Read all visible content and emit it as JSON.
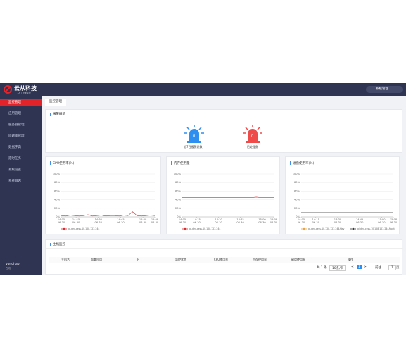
{
  "header": {
    "logo": "云从科技",
    "slogan": "· 人工智能专家 ·",
    "button": "系统管理"
  },
  "menu": [
    "监控管理",
    "应用管理",
    "服务器管理",
    "问题库管理",
    "数据字典",
    "定时任务",
    "系统设置",
    "系统日志"
  ],
  "user": {
    "name": "yonghao",
    "status": "在线"
  },
  "tab": "监控管理",
  "alarm_panel": {
    "title": "报警概览",
    "items": [
      {
        "count": "0",
        "label": "近7日报警总数"
      },
      {
        "count": "0",
        "label": "已处理数"
      }
    ]
  },
  "charts": [
    {
      "type": "line",
      "title": "CPU使用率(%)",
      "xlim": [
        0,
        63
      ],
      "ylim": [
        0,
        100
      ],
      "yticks": [
        {
          "value": 0,
          "label": "0%"
        },
        {
          "value": 20,
          "label": "20%"
        },
        {
          "value": 40,
          "label": "40%"
        },
        {
          "value": 60,
          "label": "60%"
        },
        {
          "value": 80,
          "label": "80%"
        },
        {
          "value": 100,
          "label": "100%"
        }
      ],
      "xticks": [
        {
          "value": 0,
          "label": "14:05",
          "sublabel": "06-30"
        },
        {
          "value": 10,
          "label": "14:15",
          "sublabel": "06-30"
        },
        {
          "value": 25,
          "label": "14:30",
          "sublabel": "06-30"
        },
        {
          "value": 40,
          "label": "14:45",
          "sublabel": "06-30"
        },
        {
          "value": 55,
          "label": "15:00",
          "sublabel": "06-30"
        },
        {
          "value": 63,
          "label": "15:08",
          "sublabel": "06-30"
        }
      ],
      "x": [
        0,
        3,
        6,
        9,
        12,
        15,
        18,
        21,
        24,
        27,
        30,
        33,
        36,
        39,
        42,
        45,
        48,
        51,
        54,
        57,
        60,
        63
      ],
      "series": [
        {
          "name": "ai-dev-cess-10.128.122.244",
          "color": "#d9262c",
          "values": [
            3,
            2,
            4,
            3,
            2,
            3,
            5,
            2,
            3,
            4,
            2,
            3,
            3,
            2,
            4,
            3,
            12,
            3,
            2,
            3,
            4,
            3
          ]
        }
      ]
    },
    {
      "type": "line",
      "title": "内存使用量",
      "xlim": [
        0,
        63
      ],
      "ylim": [
        0,
        100
      ],
      "yticks": [
        {
          "value": 0,
          "label": "0%"
        },
        {
          "value": 20,
          "label": "20%"
        },
        {
          "value": 40,
          "label": "40%"
        },
        {
          "value": 60,
          "label": "60%"
        },
        {
          "value": 80,
          "label": "80%"
        },
        {
          "value": 100,
          "label": "100%"
        }
      ],
      "xticks": [
        {
          "value": 0,
          "label": "14:05",
          "sublabel": "06-30"
        },
        {
          "value": 10,
          "label": "14:15",
          "sublabel": "06-30"
        },
        {
          "value": 25,
          "label": "14:30",
          "sublabel": "06-30"
        },
        {
          "value": 40,
          "label": "14:45",
          "sublabel": "06-30"
        },
        {
          "value": 55,
          "label": "15:00",
          "sublabel": "06-30"
        },
        {
          "value": 63,
          "label": "15:08",
          "sublabel": "06-30"
        }
      ],
      "x": [
        0,
        3,
        6,
        9,
        12,
        15,
        18,
        21,
        24,
        27,
        30,
        33,
        36,
        39,
        42,
        45,
        48,
        51,
        54,
        57,
        60,
        63
      ],
      "series": [
        {
          "name": "ai-dev-cess-10.128.122.244",
          "color": "#d9262c",
          "values": [
            45,
            45,
            45,
            45,
            45,
            45,
            45,
            45,
            45,
            45,
            45,
            45,
            45,
            45,
            45,
            45,
            45,
            46,
            45,
            45,
            45,
            45
          ]
        }
      ]
    },
    {
      "type": "line",
      "title": "磁盘使用率(%)",
      "xlim": [
        0,
        63
      ],
      "ylim": [
        0,
        100
      ],
      "yticks": [
        {
          "value": 0,
          "label": "0%"
        },
        {
          "value": 20,
          "label": "20%"
        },
        {
          "value": 40,
          "label": "40%"
        },
        {
          "value": 60,
          "label": "60%"
        },
        {
          "value": 80,
          "label": "80%"
        },
        {
          "value": 100,
          "label": "100%"
        }
      ],
      "xticks": [
        {
          "value": 0,
          "label": "14:05",
          "sublabel": "06-30"
        },
        {
          "value": 10,
          "label": "14:15",
          "sublabel": "06-30"
        },
        {
          "value": 25,
          "label": "14:30",
          "sublabel": "06-30"
        },
        {
          "value": 40,
          "label": "14:45",
          "sublabel": "06-30"
        },
        {
          "value": 55,
          "label": "15:00",
          "sublabel": "06-30"
        },
        {
          "value": 63,
          "label": "15:08",
          "sublabel": "06-30"
        }
      ],
      "x": [
        0,
        63
      ],
      "series": [
        {
          "name": "ai-dev-cess-10.128.122.244/dev",
          "color": "#e8a33b",
          "values": [
            65,
            65
          ]
        },
        {
          "name": "ai-dev-cess-10.128.122.244/boot",
          "color": "#333333",
          "values": [
            10,
            10
          ]
        }
      ]
    }
  ],
  "host_panel": {
    "title": "主机监控",
    "columns": [
      "主机名",
      "部署应用",
      "IP",
      "监控状态",
      "CPU使用率",
      "内存使用率",
      "磁盘使用率",
      "操作"
    ]
  },
  "pagination": {
    "total": "共 1 条",
    "size": "10条/页",
    "prev": "<",
    "page": "1",
    "next": ">",
    "goto": "前往",
    "input": "1",
    "unit": "页"
  }
}
